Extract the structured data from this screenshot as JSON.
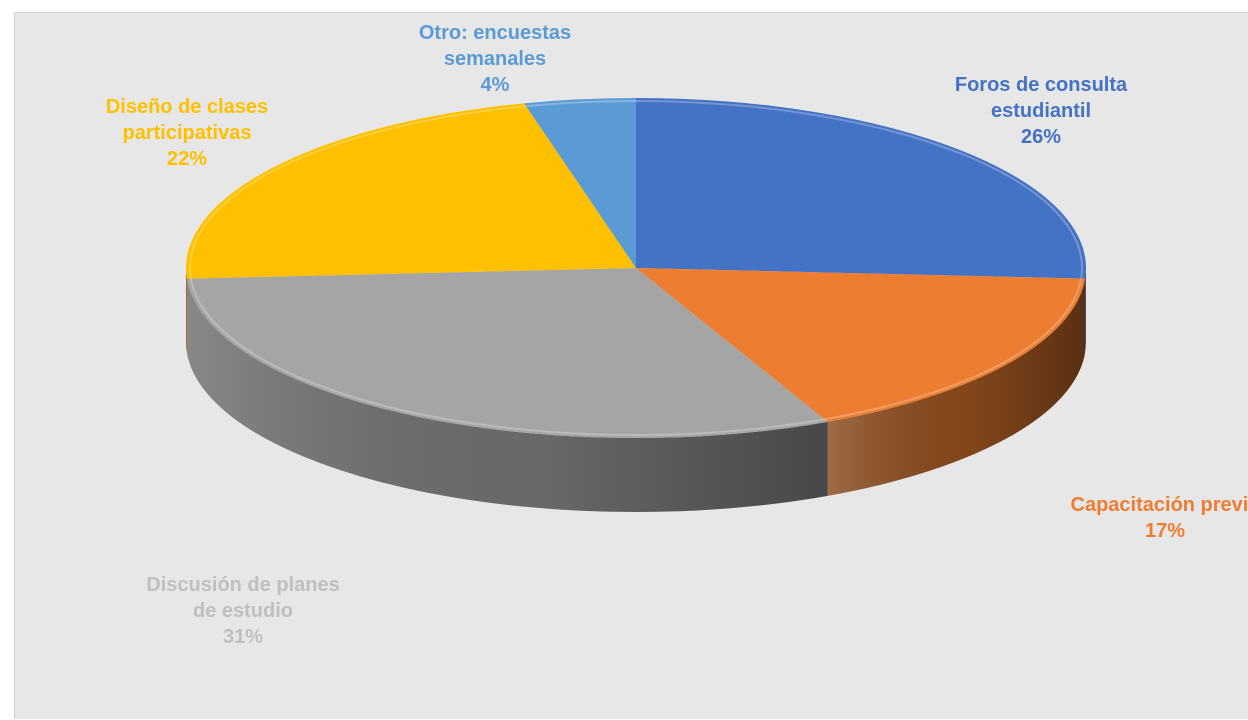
{
  "chart_data": {
    "type": "pie",
    "title": "",
    "slices": [
      {
        "name": "Foros de consulta estudiantil",
        "lines": [
          "Foros de consulta",
          "estudiantil"
        ],
        "value": 26,
        "value_label": "26%",
        "color": "#4472c4",
        "side_color": "#2f4f8a"
      },
      {
        "name": "Capacitación previa",
        "lines": [
          "Capacitación previa"
        ],
        "value": 17,
        "value_label": "17%",
        "color": "#ed7d31",
        "side_color": "#8a4a1d"
      },
      {
        "name": "Discusión de planes de estudio",
        "lines": [
          "Discusión de planes",
          "de estudio"
        ],
        "value": 31,
        "value_label": "31%",
        "color": "#a5a5a5",
        "side_color": "#6e6e6e"
      },
      {
        "name": "Diseño de clases participativas",
        "lines": [
          "Diseño de clases",
          "participativas"
        ],
        "value": 22,
        "value_label": "22%",
        "color": "#ffc000",
        "side_color": "#a07800"
      },
      {
        "name": "Otro: encuestas semanales",
        "lines": [
          "Otro: encuestas",
          "semanales"
        ],
        "value": 4,
        "value_label": "4%",
        "color": "#5b9bd5",
        "side_color": "#3a6a96"
      }
    ],
    "label_colors": [
      "#4472c4",
      "#ed7d31",
      "#bfbfbf",
      "#ffc000",
      "#5b9bd5"
    ],
    "legend": "none"
  }
}
